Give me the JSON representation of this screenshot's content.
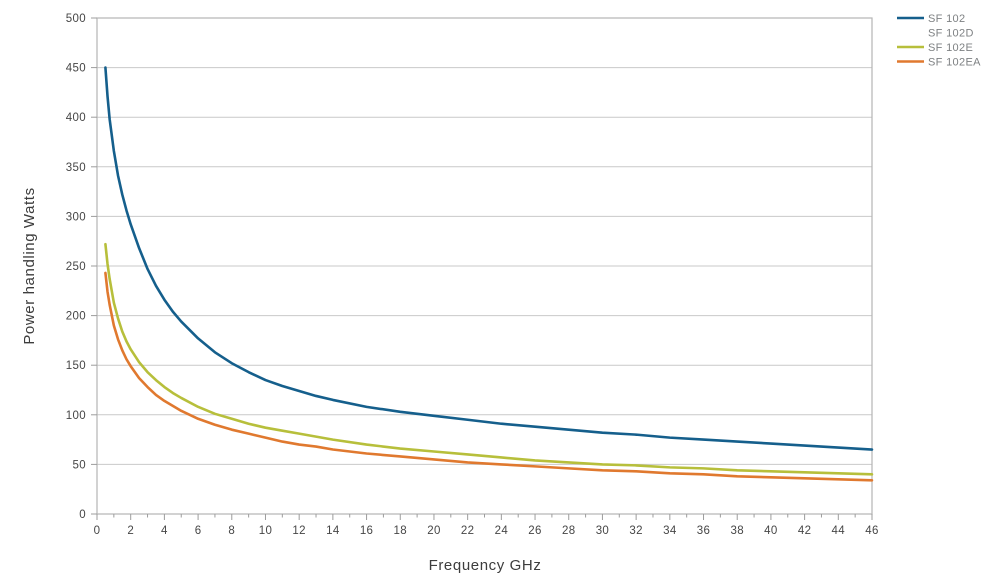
{
  "page": {
    "background_color": "#ffffff"
  },
  "chart_data": {
    "type": "line",
    "title": "",
    "xlabel": "Frequency GHz",
    "ylabel": "Power handling Watts",
    "xlim": [
      0,
      46
    ],
    "ylim": [
      0,
      500
    ],
    "x_major_ticks": [
      0,
      2,
      4,
      6,
      8,
      10,
      12,
      14,
      16,
      18,
      20,
      22,
      24,
      26,
      28,
      30,
      32,
      34,
      36,
      38,
      40,
      42,
      44,
      46
    ],
    "x_minor_ticks": [
      1,
      3,
      5,
      7,
      9,
      11,
      13,
      15,
      17,
      19,
      21,
      23,
      25,
      27,
      29,
      31,
      33,
      35,
      37,
      39,
      41,
      43,
      45
    ],
    "y_ticks": [
      0,
      50,
      100,
      150,
      200,
      250,
      300,
      350,
      400,
      450,
      500
    ],
    "grid": "horizontal",
    "plot_border": true,
    "legend_position": "outside-top-right",
    "colors": {
      "grid": "#c9c9c9",
      "plot_border": "#b5b5b5",
      "tick": "#9c9c9c",
      "tick_label": "#464646",
      "axis_title": "#3d3d3d",
      "legend_text": "#7e8183"
    },
    "series": [
      {
        "name": "SF 102",
        "color": "#155f8c",
        "points": [
          [
            0.5,
            450
          ],
          [
            0.625,
            421
          ],
          [
            0.75,
            398
          ],
          [
            1,
            366
          ],
          [
            1.25,
            341
          ],
          [
            1.5,
            322
          ],
          [
            1.75,
            306
          ],
          [
            2,
            292
          ],
          [
            2.5,
            268
          ],
          [
            3,
            247
          ],
          [
            3.5,
            230
          ],
          [
            4,
            216
          ],
          [
            4.5,
            204
          ],
          [
            5,
            194
          ],
          [
            6,
            177
          ],
          [
            7,
            163
          ],
          [
            8,
            152
          ],
          [
            9,
            143
          ],
          [
            10,
            135
          ],
          [
            11,
            129
          ],
          [
            12,
            124
          ],
          [
            13,
            119
          ],
          [
            14,
            115
          ],
          [
            16,
            108
          ],
          [
            18,
            103
          ],
          [
            20,
            99
          ],
          [
            22,
            95
          ],
          [
            24,
            91
          ],
          [
            26,
            88
          ],
          [
            28,
            85
          ],
          [
            30,
            82
          ],
          [
            32,
            80
          ],
          [
            34,
            77
          ],
          [
            36,
            75
          ],
          [
            38,
            73
          ],
          [
            40,
            71
          ],
          [
            42,
            69
          ],
          [
            44,
            67
          ],
          [
            46,
            65
          ]
        ]
      },
      {
        "name": "SF 102D",
        "color": null,
        "points": []
      },
      {
        "name": "SF 102E",
        "color": "#b7bf3b",
        "points": [
          [
            0.5,
            272
          ],
          [
            0.625,
            252
          ],
          [
            0.75,
            237
          ],
          [
            1,
            213
          ],
          [
            1.25,
            197
          ],
          [
            1.5,
            184
          ],
          [
            1.75,
            174
          ],
          [
            2,
            166
          ],
          [
            2.5,
            153
          ],
          [
            3,
            143
          ],
          [
            3.5,
            135
          ],
          [
            4,
            128
          ],
          [
            4.5,
            122
          ],
          [
            5,
            117
          ],
          [
            6,
            108
          ],
          [
            7,
            101
          ],
          [
            8,
            96
          ],
          [
            9,
            91
          ],
          [
            10,
            87
          ],
          [
            11,
            84
          ],
          [
            12,
            81
          ],
          [
            13,
            78
          ],
          [
            14,
            75
          ],
          [
            16,
            70
          ],
          [
            18,
            66
          ],
          [
            20,
            63
          ],
          [
            22,
            60
          ],
          [
            24,
            57
          ],
          [
            26,
            54
          ],
          [
            28,
            52
          ],
          [
            30,
            50
          ],
          [
            32,
            49
          ],
          [
            34,
            47
          ],
          [
            36,
            46
          ],
          [
            38,
            44
          ],
          [
            40,
            43
          ],
          [
            42,
            42
          ],
          [
            44,
            41
          ],
          [
            46,
            40
          ]
        ]
      },
      {
        "name": "SF 102EA",
        "color": "#e0792f",
        "points": [
          [
            0.5,
            243
          ],
          [
            0.625,
            224
          ],
          [
            0.75,
            211
          ],
          [
            1,
            190
          ],
          [
            1.25,
            176
          ],
          [
            1.5,
            165
          ],
          [
            1.75,
            156
          ],
          [
            2,
            149
          ],
          [
            2.5,
            137
          ],
          [
            3,
            128
          ],
          [
            3.5,
            120
          ],
          [
            4,
            114
          ],
          [
            4.5,
            109
          ],
          [
            5,
            104
          ],
          [
            6,
            96
          ],
          [
            7,
            90
          ],
          [
            8,
            85
          ],
          [
            9,
            81
          ],
          [
            10,
            77
          ],
          [
            11,
            73
          ],
          [
            12,
            70
          ],
          [
            13,
            68
          ],
          [
            14,
            65
          ],
          [
            16,
            61
          ],
          [
            18,
            58
          ],
          [
            20,
            55
          ],
          [
            22,
            52
          ],
          [
            24,
            50
          ],
          [
            26,
            48
          ],
          [
            28,
            46
          ],
          [
            30,
            44
          ],
          [
            32,
            43
          ],
          [
            34,
            41
          ],
          [
            36,
            40
          ],
          [
            38,
            38
          ],
          [
            40,
            37
          ],
          [
            42,
            36
          ],
          [
            44,
            35
          ],
          [
            46,
            34
          ]
        ]
      }
    ]
  }
}
